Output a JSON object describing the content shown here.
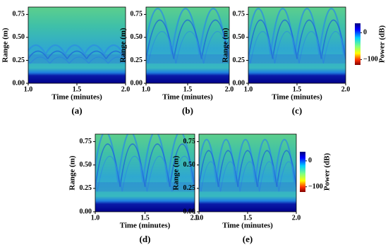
{
  "chart_data": [
    {
      "type": "heatmap",
      "title": "(a)",
      "xlabel": "Time (minutes)",
      "ylabel": "Range (m)",
      "xlim": [
        1,
        2
      ],
      "xticks": [
        {
          "value": 1,
          "label": "1.0"
        },
        {
          "value": 1.5,
          "label": "1.5"
        },
        {
          "value": 2,
          "label": "2.0"
        }
      ],
      "ylim": [
        0,
        0.83
      ],
      "yticks": [
        {
          "value": 0,
          "label": "0.00"
        },
        {
          "value": 0.25,
          "label": "0.25"
        },
        {
          "value": 0.5,
          "label": "0.50"
        },
        {
          "value": 0.75,
          "label": "0.75"
        }
      ],
      "colormap": "jet"
    },
    {
      "type": "heatmap",
      "title": "(b)",
      "xlabel": "Time (minutes)",
      "ylabel": "Range (m)",
      "xlim": [
        1,
        2
      ],
      "xticks": [
        {
          "value": 1,
          "label": "1.0"
        },
        {
          "value": 1.5,
          "label": "1.5"
        },
        {
          "value": 2,
          "label": "2.0"
        }
      ],
      "ylim": [
        0,
        0.83
      ],
      "yticks": [
        {
          "value": 0,
          "label": "0.00"
        },
        {
          "value": 0.25,
          "label": "0.25"
        },
        {
          "value": 0.5,
          "label": "0.50"
        },
        {
          "value": 0.75,
          "label": "0.75"
        }
      ],
      "colormap": "jet"
    },
    {
      "type": "heatmap",
      "title": "(c)",
      "xlabel": "Time (minutes)",
      "ylabel": "Range (m)",
      "xlim": [
        1,
        2
      ],
      "xticks": [
        {
          "value": 1,
          "label": "1.0"
        },
        {
          "value": 1.5,
          "label": "1.5"
        },
        {
          "value": 2,
          "label": "2.0"
        }
      ],
      "ylim": [
        0,
        0.83
      ],
      "yticks": [
        {
          "value": 0,
          "label": "0.00"
        },
        {
          "value": 0.25,
          "label": "0.25"
        },
        {
          "value": 0.5,
          "label": "0.50"
        },
        {
          "value": 0.75,
          "label": "0.75"
        }
      ],
      "colormap": "jet",
      "colorbar": {
        "label": "Power (dB)",
        "lim": [
          -120,
          35
        ],
        "ticks": [
          0,
          {
            "value": -100,
            "label": "−100"
          }
        ]
      }
    },
    {
      "type": "heatmap",
      "title": "(d)",
      "xlabel": "Time (minutes)",
      "ylabel": "Range (m)",
      "xlim": [
        1,
        2
      ],
      "xticks": [
        {
          "value": 1,
          "label": "1.0"
        },
        {
          "value": 1.5,
          "label": "1.5"
        },
        {
          "value": 2,
          "label": "2.0"
        }
      ],
      "ylim": [
        0,
        0.83
      ],
      "yticks": [
        {
          "value": 0,
          "label": "0.00"
        },
        {
          "value": 0.25,
          "label": "0.25"
        },
        {
          "value": 0.5,
          "label": "0.50"
        },
        {
          "value": 0.75,
          "label": "0.75"
        }
      ],
      "colormap": "jet"
    },
    {
      "type": "heatmap",
      "title": "(e)",
      "xlabel": "Time (minutes)",
      "ylabel": "Range (m)",
      "xlim": [
        1,
        2
      ],
      "xticks": [
        {
          "value": 1,
          "label": "1.0"
        },
        {
          "value": 1.5,
          "label": "1.5"
        },
        {
          "value": 2,
          "label": "2.0"
        }
      ],
      "ylim": [
        0,
        0.83
      ],
      "yticks": [
        {
          "value": 0,
          "label": "0.00"
        },
        {
          "value": 0.25,
          "label": "0.25"
        },
        {
          "value": 0.5,
          "label": "0.50"
        },
        {
          "value": 0.75,
          "label": "0.75"
        }
      ],
      "colormap": "jet",
      "colorbar": {
        "label": "Power (dB)",
        "lim": [
          -120,
          35
        ],
        "ticks": [
          0,
          {
            "value": -100,
            "label": "−100"
          }
        ]
      }
    }
  ]
}
